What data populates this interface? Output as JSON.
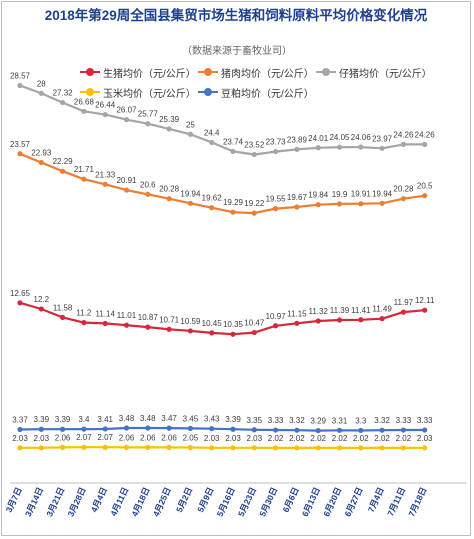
{
  "header": {
    "title": "2018年第29周全国县集贸市场生猪和饲料原料平均价格变化情况",
    "subtitle": "（数据来源于畜牧业司）"
  },
  "chart_data": {
    "type": "line",
    "title": "2018年第29周全国县集贸市场生猪和饲料原料平均价格变化情况",
    "subtitle": "（数据来源于畜牧业司）",
    "categories": [
      "3月7日",
      "3月14日",
      "3月21日",
      "3月28日",
      "4月4日",
      "4月11日",
      "4月18日",
      "4月25日",
      "5月2日",
      "5月9日",
      "5月16日",
      "5月23日",
      "5月30日",
      "6月6日",
      "6月13日",
      "6月20日",
      "6月27日",
      "7月4日",
      "7月11日",
      "7月18日"
    ],
    "ylim": [
      0,
      31
    ],
    "grid": false,
    "legend_position": "top",
    "series": [
      {
        "name": "生猪均价（元/公斤）",
        "color": "#d6283a",
        "values": [
          12.65,
          12.2,
          11.58,
          11.2,
          11.14,
          11.01,
          10.87,
          10.71,
          10.59,
          10.45,
          10.35,
          10.47,
          10.97,
          11.15,
          11.32,
          11.39,
          11.41,
          11.49,
          11.97,
          12.11
        ]
      },
      {
        "name": "猪肉均价（元/公斤）",
        "color": "#ed7d31",
        "values": [
          23.57,
          22.93,
          22.29,
          21.71,
          21.33,
          20.91,
          20.6,
          20.28,
          19.94,
          19.62,
          19.29,
          19.22,
          19.55,
          19.67,
          19.84,
          19.9,
          19.91,
          19.94,
          20.28,
          20.5
        ]
      },
      {
        "name": "仔猪均价（元/公斤）",
        "color": "#a5a5a5",
        "values": [
          28.57,
          28,
          27.32,
          26.68,
          26.44,
          26.07,
          25.77,
          25.39,
          25,
          24.4,
          23.74,
          23.52,
          23.73,
          23.89,
          24.01,
          24.05,
          24.06,
          23.97,
          24.26,
          24.26
        ]
      },
      {
        "name": "玉米均价（元/公斤）",
        "color": "#ffc000",
        "values": [
          2.03,
          2.03,
          2.06,
          2.07,
          2.07,
          2.06,
          2.06,
          2.06,
          2.05,
          2.03,
          2.03,
          2.03,
          2.02,
          2.02,
          2.02,
          2.02,
          2.02,
          2.02,
          2.02,
          2.03
        ]
      },
      {
        "name": "豆粕均价（元/公斤）",
        "color": "#4472c4",
        "values": [
          3.37,
          3.39,
          3.39,
          3.4,
          3.41,
          3.48,
          3.48,
          3.47,
          3.45,
          3.43,
          3.39,
          3.35,
          3.33,
          3.32,
          3.29,
          3.31,
          3.3,
          3.32,
          3.33,
          3.33
        ]
      }
    ]
  }
}
